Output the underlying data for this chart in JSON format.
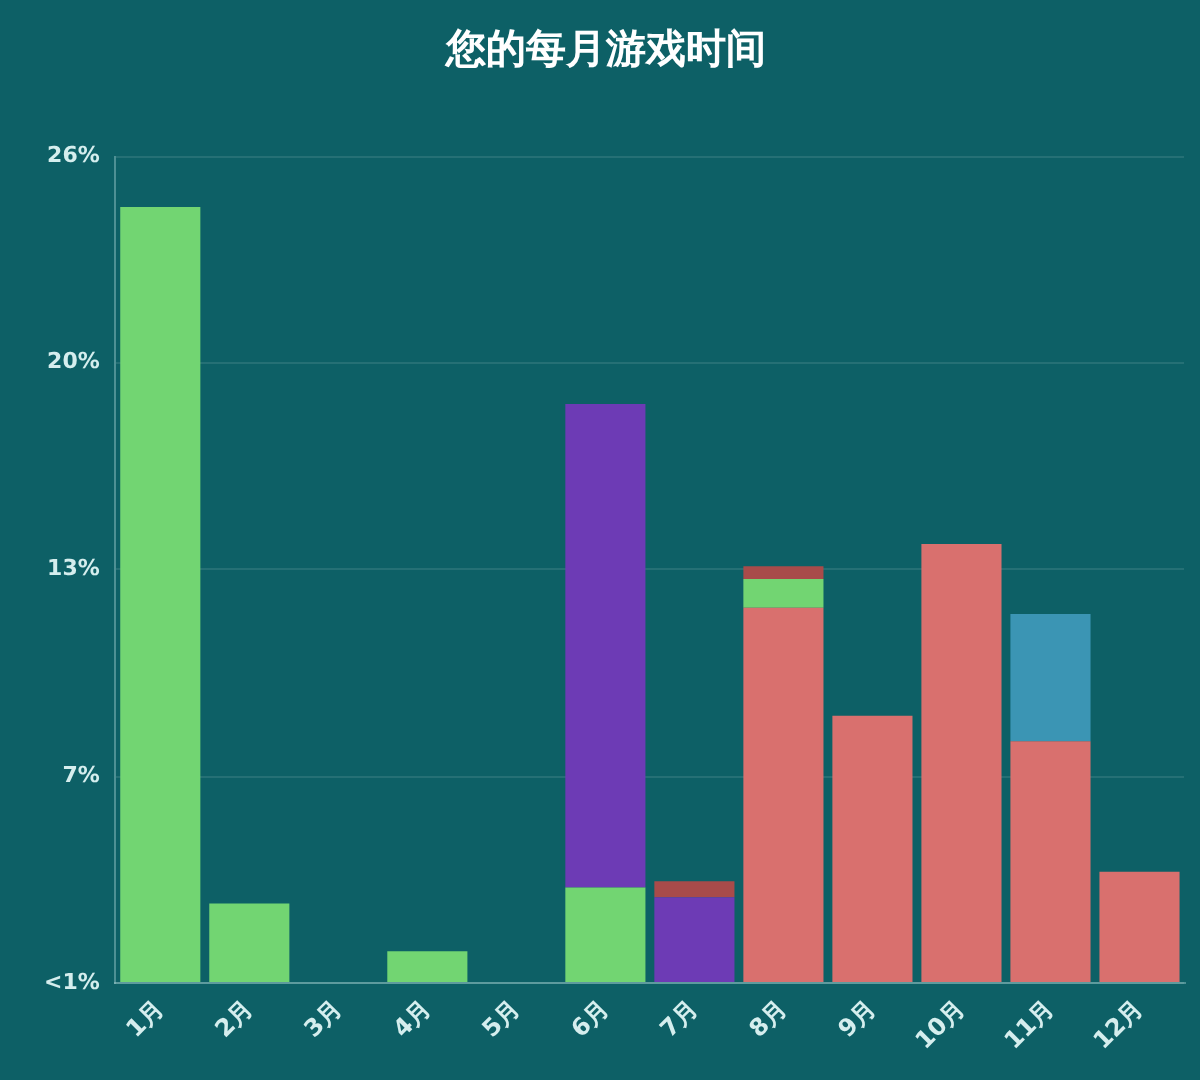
{
  "chart_data": {
    "type": "bar",
    "title": "您的每月游戏时间",
    "categories": [
      "1月",
      "2月",
      "3月",
      "4月",
      "5月",
      "6月",
      "7月",
      "8月",
      "9月",
      "10月",
      "11月",
      "12月"
    ],
    "stacked": true,
    "series": [
      {
        "color": "#d9706e",
        "values": [
          null,
          null,
          null,
          null,
          null,
          null,
          null,
          11.8,
          8.4,
          13.8,
          7.6,
          3.5
        ]
      },
      {
        "color": "#72d572",
        "values": [
          24.4,
          2.5,
          null,
          1.0,
          null,
          3.0,
          null,
          0.9,
          null,
          null,
          null,
          null
        ]
      },
      {
        "color": "#6d3bb5",
        "values": [
          null,
          null,
          null,
          null,
          null,
          15.2,
          2.7,
          null,
          null,
          null,
          null,
          null
        ]
      },
      {
        "color": "#a84b4a",
        "values": [
          null,
          null,
          null,
          null,
          null,
          null,
          0.5,
          0.4,
          null,
          null,
          null,
          null
        ]
      },
      {
        "color": "#3b95b4",
        "values": [
          null,
          null,
          null,
          null,
          null,
          null,
          null,
          null,
          null,
          null,
          4.0,
          null
        ]
      }
    ],
    "ylim": [
      0,
      26
    ],
    "yticks": [
      {
        "value": 0,
        "label": "<1%"
      },
      {
        "value": 6.5,
        "label": "7%"
      },
      {
        "value": 13,
        "label": "13%"
      },
      {
        "value": 19.5,
        "label": "20%"
      },
      {
        "value": 26,
        "label": "26%"
      }
    ],
    "grid": "y"
  }
}
